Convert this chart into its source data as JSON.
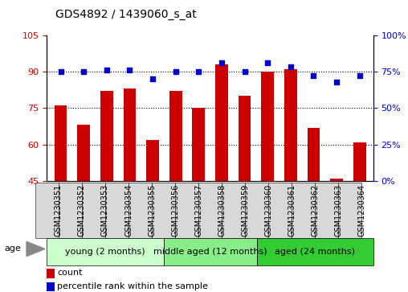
{
  "title": "GDS4892 / 1439060_s_at",
  "samples": [
    "GSM1230351",
    "GSM1230352",
    "GSM1230353",
    "GSM1230354",
    "GSM1230355",
    "GSM1230356",
    "GSM1230357",
    "GSM1230358",
    "GSM1230359",
    "GSM1230360",
    "GSM1230361",
    "GSM1230362",
    "GSM1230363",
    "GSM1230364"
  ],
  "counts": [
    76,
    68,
    82,
    83,
    62,
    82,
    75,
    93,
    80,
    90,
    91,
    67,
    46,
    61
  ],
  "percentiles": [
    75,
    75,
    76,
    76,
    70,
    75,
    75,
    81,
    75,
    81,
    78,
    72,
    68,
    72
  ],
  "ylim_left": [
    45,
    105
  ],
  "ylim_right": [
    0,
    100
  ],
  "yticks_left": [
    45,
    60,
    75,
    90,
    105
  ],
  "yticks_right": [
    0,
    25,
    50,
    75,
    100
  ],
  "grid_lines": [
    60,
    75,
    90
  ],
  "groups": [
    {
      "label": "young (2 months)",
      "start": 0,
      "end": 5,
      "color": "#ccffcc"
    },
    {
      "label": "middle aged (12 months)",
      "start": 5,
      "end": 9,
      "color": "#88ee88"
    },
    {
      "label": "aged (24 months)",
      "start": 9,
      "end": 14,
      "color": "#33cc33"
    }
  ],
  "bar_color": "#cc0000",
  "dot_color": "#0000cc",
  "title_fontsize": 10,
  "tick_label_fontsize": 7,
  "axis_tick_color_left": "#cc0000",
  "axis_tick_color_right": "#0000cc",
  "group_label_fontsize": 8,
  "legend_count_label": "count",
  "legend_pct_label": "percentile rank within the sample",
  "age_label": "age",
  "sample_box_color": "#d8d8d8",
  "ytick_fontsize": 8
}
